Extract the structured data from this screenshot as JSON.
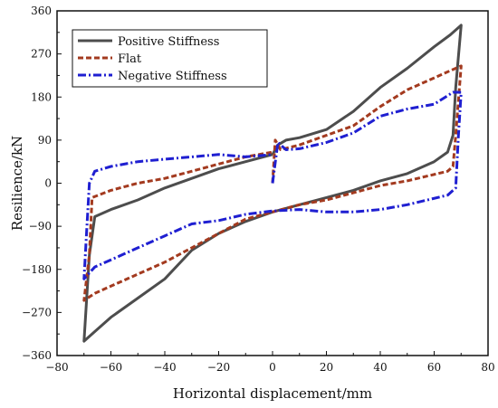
{
  "chart_data": {
    "type": "line",
    "xlabel": "Horizontal displacement/mm",
    "ylabel": "Resilience/kN",
    "xlim": [
      -80,
      80
    ],
    "ylim": [
      -360,
      360
    ],
    "xticks": [
      -80,
      -60,
      -40,
      -20,
      0,
      20,
      40,
      60,
      80
    ],
    "yticks": [
      -360,
      -270,
      -180,
      -90,
      0,
      90,
      180,
      270,
      360
    ],
    "xtick_labels": [
      "−80",
      "−60",
      "−40",
      "−20",
      "0",
      "20",
      "40",
      "60",
      "80"
    ],
    "ytick_labels": [
      "−360",
      "−270",
      "−180",
      "−90",
      "0",
      "90",
      "180",
      "270",
      "360"
    ],
    "grid": false,
    "legend_position": "top-left",
    "series": [
      {
        "name": "Positive Stiffness",
        "color": "#4d4d4d",
        "style": "solid",
        "points": [
          [
            0,
            60
          ],
          [
            2,
            80
          ],
          [
            5,
            90
          ],
          [
            10,
            95
          ],
          [
            20,
            112
          ],
          [
            30,
            150
          ],
          [
            40,
            200
          ],
          [
            50,
            240
          ],
          [
            60,
            285
          ],
          [
            66,
            310
          ],
          [
            70,
            330
          ],
          [
            68,
            200
          ],
          [
            67,
            100
          ],
          [
            65,
            65
          ],
          [
            60,
            45
          ],
          [
            50,
            20
          ],
          [
            40,
            5
          ],
          [
            30,
            -15
          ],
          [
            20,
            -30
          ],
          [
            10,
            -45
          ],
          [
            0,
            -60
          ],
          [
            -10,
            -80
          ],
          [
            -20,
            -105
          ],
          [
            -30,
            -140
          ],
          [
            -40,
            -200
          ],
          [
            -50,
            -240
          ],
          [
            -60,
            -280
          ],
          [
            -66,
            -310
          ],
          [
            -70,
            -330
          ],
          [
            -68,
            -150
          ],
          [
            -66,
            -70
          ],
          [
            -60,
            -55
          ],
          [
            -50,
            -35
          ],
          [
            -40,
            -10
          ],
          [
            -30,
            10
          ],
          [
            -20,
            30
          ],
          [
            -10,
            45
          ],
          [
            0,
            60
          ]
        ]
      },
      {
        "name": "Flat",
        "color": "#a33a1f",
        "style": "dashed",
        "points": [
          [
            0,
            0
          ],
          [
            1,
            90
          ],
          [
            3,
            70
          ],
          [
            10,
            80
          ],
          [
            20,
            100
          ],
          [
            30,
            120
          ],
          [
            40,
            160
          ],
          [
            50,
            195
          ],
          [
            60,
            220
          ],
          [
            66,
            235
          ],
          [
            70,
            245
          ],
          [
            68,
            100
          ],
          [
            67,
            35
          ],
          [
            65,
            25
          ],
          [
            50,
            5
          ],
          [
            40,
            -5
          ],
          [
            30,
            -20
          ],
          [
            20,
            -35
          ],
          [
            10,
            -45
          ],
          [
            0,
            -60
          ],
          [
            -10,
            -75
          ],
          [
            -20,
            -105
          ],
          [
            -30,
            -135
          ],
          [
            -40,
            -165
          ],
          [
            -50,
            -190
          ],
          [
            -60,
            -215
          ],
          [
            -66,
            -230
          ],
          [
            -70,
            -245
          ],
          [
            -68,
            -150
          ],
          [
            -67,
            -30
          ],
          [
            -60,
            -15
          ],
          [
            -50,
            0
          ],
          [
            -40,
            10
          ],
          [
            -30,
            25
          ],
          [
            -20,
            40
          ],
          [
            -10,
            55
          ],
          [
            0,
            65
          ]
        ]
      },
      {
        "name": "Negative Stiffness",
        "color": "#1f1fd1",
        "style": "dashdot",
        "points": [
          [
            0,
            0
          ],
          [
            2,
            85
          ],
          [
            5,
            70
          ],
          [
            10,
            72
          ],
          [
            20,
            85
          ],
          [
            30,
            105
          ],
          [
            40,
            140
          ],
          [
            50,
            155
          ],
          [
            60,
            165
          ],
          [
            67,
            190
          ],
          [
            70,
            190
          ],
          [
            69,
            100
          ],
          [
            68,
            -10
          ],
          [
            65,
            -25
          ],
          [
            50,
            -45
          ],
          [
            40,
            -55
          ],
          [
            30,
            -60
          ],
          [
            20,
            -60
          ],
          [
            10,
            -55
          ],
          [
            0,
            -58
          ],
          [
            -10,
            -65
          ],
          [
            -20,
            -78
          ],
          [
            -30,
            -85
          ],
          [
            -40,
            -110
          ],
          [
            -50,
            -135
          ],
          [
            -60,
            -160
          ],
          [
            -66,
            -175
          ],
          [
            -70,
            -200
          ],
          [
            -69,
            -100
          ],
          [
            -68,
            0
          ],
          [
            -66,
            25
          ],
          [
            -60,
            35
          ],
          [
            -50,
            45
          ],
          [
            -40,
            50
          ],
          [
            -30,
            55
          ],
          [
            -20,
            60
          ],
          [
            -10,
            55
          ],
          [
            0,
            60
          ]
        ]
      }
    ]
  }
}
